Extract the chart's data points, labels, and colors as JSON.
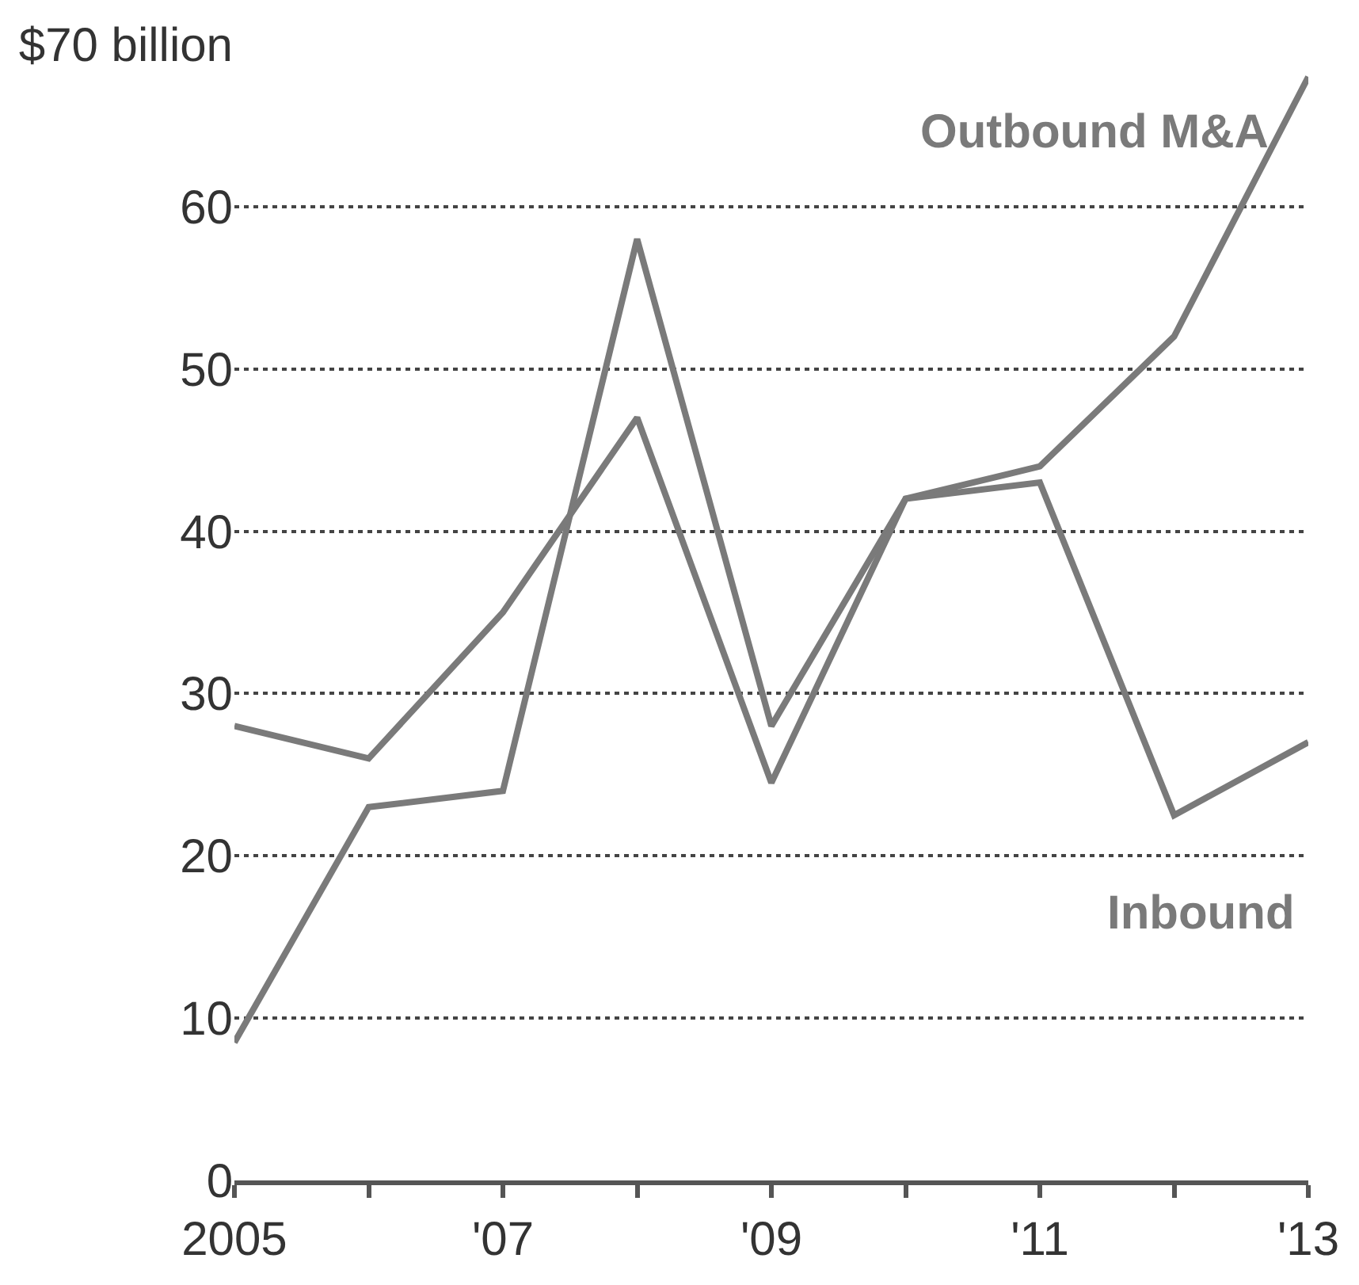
{
  "chart_data": {
    "type": "line",
    "x": [
      2005,
      2006,
      2007,
      2008,
      2009,
      2010,
      2011,
      2012,
      2013
    ],
    "series": [
      {
        "name": "Outbound M&A",
        "color": "#7a7a7a",
        "values": [
          8.5,
          23,
          24,
          58,
          28,
          42,
          44,
          52,
          68
        ]
      },
      {
        "name": "Inbound",
        "color": "#7a7a7a",
        "values": [
          28,
          26,
          35,
          47,
          24.5,
          42,
          43,
          22.5,
          27
        ]
      }
    ],
    "xlim": [
      2005,
      2013
    ],
    "xticks": [
      {
        "value": 2005,
        "label": "2005"
      },
      {
        "value": 2006,
        "label": null
      },
      {
        "value": 2007,
        "label": "'07"
      },
      {
        "value": 2008,
        "label": null
      },
      {
        "value": 2009,
        "label": "'09"
      },
      {
        "value": 2010,
        "label": null
      },
      {
        "value": 2011,
        "label": "'11"
      },
      {
        "value": 2012,
        "label": null
      },
      {
        "value": 2013,
        "label": "'13"
      }
    ],
    "ylim": [
      0,
      70
    ],
    "yticks": [
      0,
      10,
      20,
      30,
      40,
      50,
      60,
      {
        "value": 70,
        "label": "$70 billion"
      }
    ],
    "grid": "y",
    "legend": false,
    "marker": "none",
    "line_style": "solid"
  }
}
